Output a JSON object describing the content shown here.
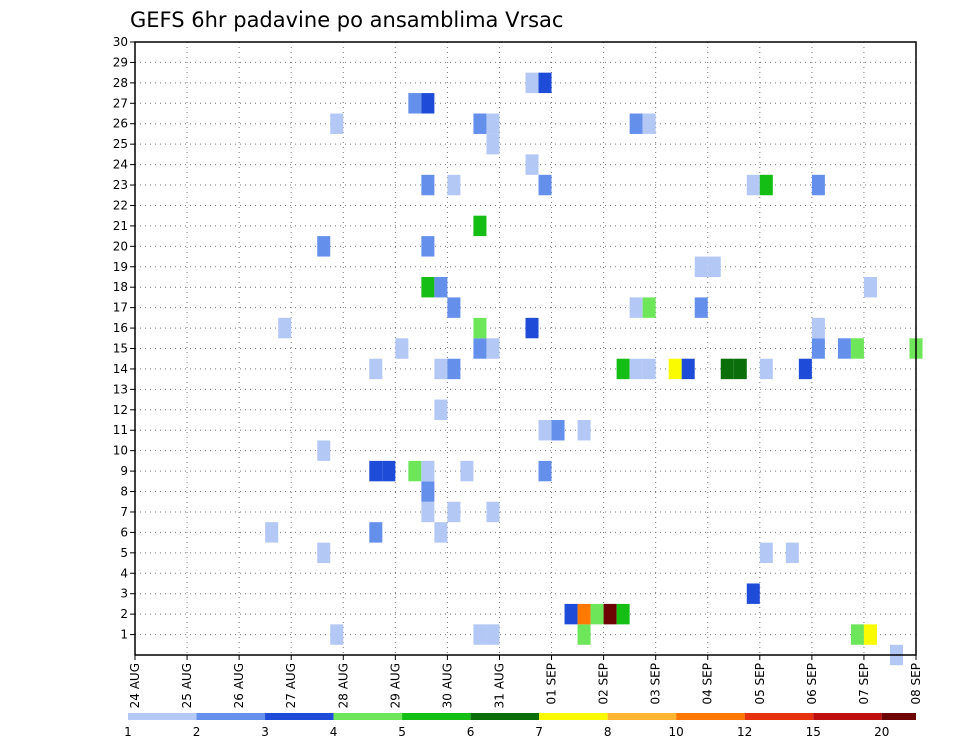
{
  "chart_data": {
    "type": "heatmap",
    "title": "GEFS 6hr padavine po ansamblima Vrsac",
    "xlabel": "",
    "ylabel": "",
    "x_unit": "6-hour steps from 24 AUG 00Z",
    "x_range": [
      0,
      60
    ],
    "y_range": [
      0,
      30
    ],
    "x_tick_labels": [
      "24 AUG",
      "25 AUG",
      "26 AUG",
      "27 AUG",
      "28 AUG",
      "29 AUG",
      "30 AUG",
      "31 AUG",
      "01 SEP",
      "02 SEP",
      "03 SEP",
      "04 SEP",
      "05 SEP",
      "06 SEP",
      "07 SEP",
      "08 SEP"
    ],
    "y_tick_labels": [
      "1",
      "2",
      "3",
      "4",
      "5",
      "6",
      "7",
      "8",
      "9",
      "10",
      "11",
      "12",
      "13",
      "14",
      "15",
      "16",
      "17",
      "18",
      "19",
      "20",
      "21",
      "22",
      "23",
      "24",
      "25",
      "26",
      "27",
      "28",
      "29",
      "30"
    ],
    "grid": true,
    "colorbar": {
      "placement": "bottom",
      "labels": [
        "1",
        "2",
        "3",
        "4",
        "5",
        "6",
        "7",
        "8",
        "10",
        "12",
        "15",
        "20"
      ],
      "colors": [
        "#b4c8f5",
        "#6490eb",
        "#1e4bd7",
        "#6ee65a",
        "#14be14",
        "#0a6e0a",
        "#fafa00",
        "#ffb432",
        "#ff7800",
        "#e6320f",
        "#be0f0f",
        "#6e0505"
      ]
    },
    "cells": [
      {
        "x": 15.5,
        "y": 1,
        "c": 0
      },
      {
        "x": 26.5,
        "y": 1,
        "c": 0
      },
      {
        "x": 27.5,
        "y": 1,
        "c": 0
      },
      {
        "x": 34.5,
        "y": 1,
        "c": 3
      },
      {
        "x": 55.5,
        "y": 1,
        "c": 3
      },
      {
        "x": 56.5,
        "y": 1,
        "c": 6
      },
      {
        "x": 58.5,
        "y": 0,
        "c": 0
      },
      {
        "x": 33.5,
        "y": 2,
        "c": 2
      },
      {
        "x": 34.5,
        "y": 2,
        "c": 8
      },
      {
        "x": 35.5,
        "y": 2,
        "c": 3
      },
      {
        "x": 36.5,
        "y": 2,
        "c": 11
      },
      {
        "x": 37.5,
        "y": 2,
        "c": 4
      },
      {
        "x": 47.5,
        "y": 3,
        "c": 2
      },
      {
        "x": 14.5,
        "y": 5,
        "c": 0
      },
      {
        "x": 48.5,
        "y": 5,
        "c": 0
      },
      {
        "x": 50.5,
        "y": 5,
        "c": 0
      },
      {
        "x": 10.5,
        "y": 6,
        "c": 0
      },
      {
        "x": 18.5,
        "y": 6,
        "c": 1
      },
      {
        "x": 23.5,
        "y": 6,
        "c": 0
      },
      {
        "x": 22.5,
        "y": 7,
        "c": 0
      },
      {
        "x": 24.5,
        "y": 7,
        "c": 0
      },
      {
        "x": 27.5,
        "y": 7,
        "c": 0
      },
      {
        "x": 22.5,
        "y": 8,
        "c": 1
      },
      {
        "x": 18.5,
        "y": 9,
        "c": 2
      },
      {
        "x": 19.5,
        "y": 9,
        "c": 2
      },
      {
        "x": 21.5,
        "y": 9,
        "c": 3
      },
      {
        "x": 22.5,
        "y": 9,
        "c": 0
      },
      {
        "x": 25.5,
        "y": 9,
        "c": 0
      },
      {
        "x": 31.5,
        "y": 9,
        "c": 1
      },
      {
        "x": 14.5,
        "y": 10,
        "c": 0
      },
      {
        "x": 31.5,
        "y": 11,
        "c": 0
      },
      {
        "x": 32.5,
        "y": 11,
        "c": 1
      },
      {
        "x": 34.5,
        "y": 11,
        "c": 0
      },
      {
        "x": 23.5,
        "y": 12,
        "c": 0
      },
      {
        "x": 18.5,
        "y": 14,
        "c": 0
      },
      {
        "x": 23.5,
        "y": 14,
        "c": 0
      },
      {
        "x": 24.5,
        "y": 14,
        "c": 1
      },
      {
        "x": 37.5,
        "y": 14,
        "c": 4
      },
      {
        "x": 38.5,
        "y": 14,
        "c": 0
      },
      {
        "x": 39.5,
        "y": 14,
        "c": 0
      },
      {
        "x": 41.5,
        "y": 14,
        "c": 6
      },
      {
        "x": 42.5,
        "y": 14,
        "c": 2
      },
      {
        "x": 45.5,
        "y": 14,
        "c": 5
      },
      {
        "x": 46.5,
        "y": 14,
        "c": 5
      },
      {
        "x": 48.5,
        "y": 14,
        "c": 0
      },
      {
        "x": 51.5,
        "y": 14,
        "c": 2
      },
      {
        "x": 20.5,
        "y": 15,
        "c": 0
      },
      {
        "x": 26.5,
        "y": 15,
        "c": 1
      },
      {
        "x": 27.5,
        "y": 15,
        "c": 0
      },
      {
        "x": 52.5,
        "y": 15,
        "c": 1
      },
      {
        "x": 54.5,
        "y": 15,
        "c": 1
      },
      {
        "x": 55.5,
        "y": 15,
        "c": 3
      },
      {
        "x": 60,
        "y": 15,
        "c": 3
      },
      {
        "x": 11.5,
        "y": 16,
        "c": 0
      },
      {
        "x": 26.5,
        "y": 16,
        "c": 3
      },
      {
        "x": 30.5,
        "y": 16,
        "c": 2
      },
      {
        "x": 52.5,
        "y": 16,
        "c": 0
      },
      {
        "x": 24.5,
        "y": 17,
        "c": 1
      },
      {
        "x": 38.5,
        "y": 17,
        "c": 0
      },
      {
        "x": 39.5,
        "y": 17,
        "c": 3
      },
      {
        "x": 43.5,
        "y": 17,
        "c": 1
      },
      {
        "x": 22.5,
        "y": 18,
        "c": 4
      },
      {
        "x": 23.5,
        "y": 18,
        "c": 1
      },
      {
        "x": 56.5,
        "y": 18,
        "c": 0
      },
      {
        "x": 43.5,
        "y": 19,
        "c": 0
      },
      {
        "x": 44.5,
        "y": 19,
        "c": 0
      },
      {
        "x": 14.5,
        "y": 20,
        "c": 1
      },
      {
        "x": 22.5,
        "y": 20,
        "c": 1
      },
      {
        "x": 26.5,
        "y": 21,
        "c": 4
      },
      {
        "x": 22.5,
        "y": 23,
        "c": 1
      },
      {
        "x": 24.5,
        "y": 23,
        "c": 0
      },
      {
        "x": 31.5,
        "y": 23,
        "c": 1
      },
      {
        "x": 47.5,
        "y": 23,
        "c": 0
      },
      {
        "x": 48.5,
        "y": 23,
        "c": 4
      },
      {
        "x": 52.5,
        "y": 23,
        "c": 1
      },
      {
        "x": 30.5,
        "y": 24,
        "c": 0
      },
      {
        "x": 27.5,
        "y": 25,
        "c": 0
      },
      {
        "x": 15.5,
        "y": 26,
        "c": 0
      },
      {
        "x": 26.5,
        "y": 26,
        "c": 1
      },
      {
        "x": 27.5,
        "y": 26,
        "c": 0
      },
      {
        "x": 38.5,
        "y": 26,
        "c": 1
      },
      {
        "x": 39.5,
        "y": 26,
        "c": 0
      },
      {
        "x": 21.5,
        "y": 27,
        "c": 1
      },
      {
        "x": 22.5,
        "y": 27,
        "c": 2
      },
      {
        "x": 30.5,
        "y": 28,
        "c": 0
      },
      {
        "x": 31.5,
        "y": 28,
        "c": 2
      }
    ]
  }
}
